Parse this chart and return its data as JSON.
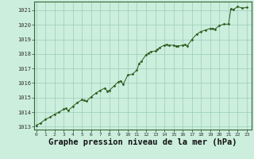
{
  "x": [
    0,
    0.5,
    1,
    1.5,
    2,
    2.5,
    3,
    3.25,
    3.5,
    4,
    4.5,
    5,
    5.25,
    5.5,
    6,
    6.5,
    7,
    7.5,
    7.75,
    8,
    8.5,
    9,
    9.25,
    9.5,
    10,
    10.5,
    11,
    11.25,
    11.5,
    12,
    12.25,
    12.5,
    13,
    13.25,
    13.5,
    14,
    14.25,
    14.5,
    15,
    15.25,
    15.5,
    16,
    16.25,
    16.5,
    17,
    17.5,
    18,
    18.5,
    19,
    19.25,
    19.5,
    20,
    20.5,
    21,
    21.25,
    21.5,
    22,
    22.5,
    23
  ],
  "y": [
    1013.1,
    1013.25,
    1013.5,
    1013.65,
    1013.85,
    1014.0,
    1014.2,
    1014.25,
    1014.1,
    1014.4,
    1014.65,
    1014.85,
    1014.8,
    1014.75,
    1015.05,
    1015.3,
    1015.5,
    1015.65,
    1015.45,
    1015.5,
    1015.8,
    1016.1,
    1016.15,
    1015.9,
    1016.55,
    1016.6,
    1016.9,
    1017.35,
    1017.5,
    1017.95,
    1018.05,
    1018.15,
    1018.2,
    1018.3,
    1018.45,
    1018.6,
    1018.65,
    1018.6,
    1018.6,
    1018.55,
    1018.55,
    1018.6,
    1018.65,
    1018.55,
    1019.0,
    1019.35,
    1019.55,
    1019.65,
    1019.75,
    1019.75,
    1019.7,
    1019.95,
    1020.05,
    1020.05,
    1021.1,
    1021.05,
    1021.25,
    1021.15,
    1021.2
  ],
  "line_color": "#2d5a1b",
  "marker_color": "#2d5a1b",
  "bg_color": "#cceedd",
  "grid_color": "#99ccbb",
  "title": "Graphe pression niveau de la mer (hPa)",
  "title_fontsize": 7.5,
  "ylim": [
    1012.8,
    1021.6
  ],
  "yticks": [
    1013,
    1014,
    1015,
    1016,
    1017,
    1018,
    1019,
    1020,
    1021
  ],
  "xticks": [
    0,
    1,
    2,
    3,
    4,
    5,
    6,
    7,
    8,
    9,
    10,
    11,
    12,
    13,
    14,
    15,
    16,
    17,
    18,
    19,
    20,
    21,
    22,
    23
  ],
  "xlim": [
    -0.2,
    23.5
  ]
}
